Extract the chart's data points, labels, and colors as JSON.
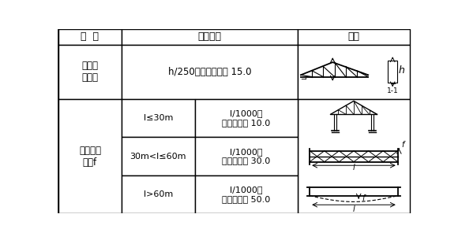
{
  "title_row": [
    "项  目",
    "允许偏差",
    "图例"
  ],
  "bg_color": "#ffffff",
  "border_color": "#000000",
  "text_color": "#000000",
  "fig_width": 5.8,
  "fig_height": 3.05,
  "dpi": 100,
  "row1_col1": "跨中的\n垂直度",
  "row1_col2": "h/250，且不应大于 15.0",
  "row2_col1": "侧向弯曲\n失高f",
  "sub_rows": [
    {
      "cond": "l≤30m",
      "limit": "l/1000，\n且不应大于 10.0"
    },
    {
      "cond": "30m<l≤60m",
      "limit": "l/1000，\n且不应大于 30.0"
    },
    {
      "cond": "l>60m",
      "limit": "l/1000，\n且不应大于 50.0"
    }
  ]
}
